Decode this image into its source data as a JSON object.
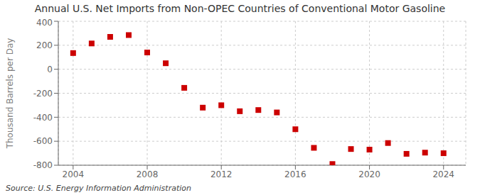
{
  "chart_data": {
    "type": "scatter",
    "title": "Annual U.S. Net Imports from Non-OPEC Countries of Conventional Motor Gasoline",
    "ylabel": "Thousand Barrels per Day",
    "annotation": "Source: U.S. Energy Information Administration",
    "x": [
      2004,
      2005,
      2006,
      2007,
      2008,
      2009,
      2010,
      2011,
      2012,
      2013,
      2014,
      2015,
      2016,
      2017,
      2018,
      2019,
      2020,
      2021,
      2022,
      2023,
      2024
    ],
    "values": [
      135,
      215,
      270,
      285,
      140,
      50,
      -155,
      -320,
      -300,
      -350,
      -340,
      -360,
      -500,
      -655,
      -790,
      -665,
      -670,
      -615,
      -705,
      -695,
      -700
    ],
    "color": "#cc0000",
    "marker": "square",
    "xlim": [
      2003.2,
      2025.2
    ],
    "xticks": [
      2004,
      2008,
      2012,
      2016,
      2020,
      2024
    ],
    "ylim": [
      -800,
      400
    ],
    "yticks": [
      -800,
      -600,
      -400,
      -200,
      0,
      200,
      400
    ],
    "grid": true
  }
}
